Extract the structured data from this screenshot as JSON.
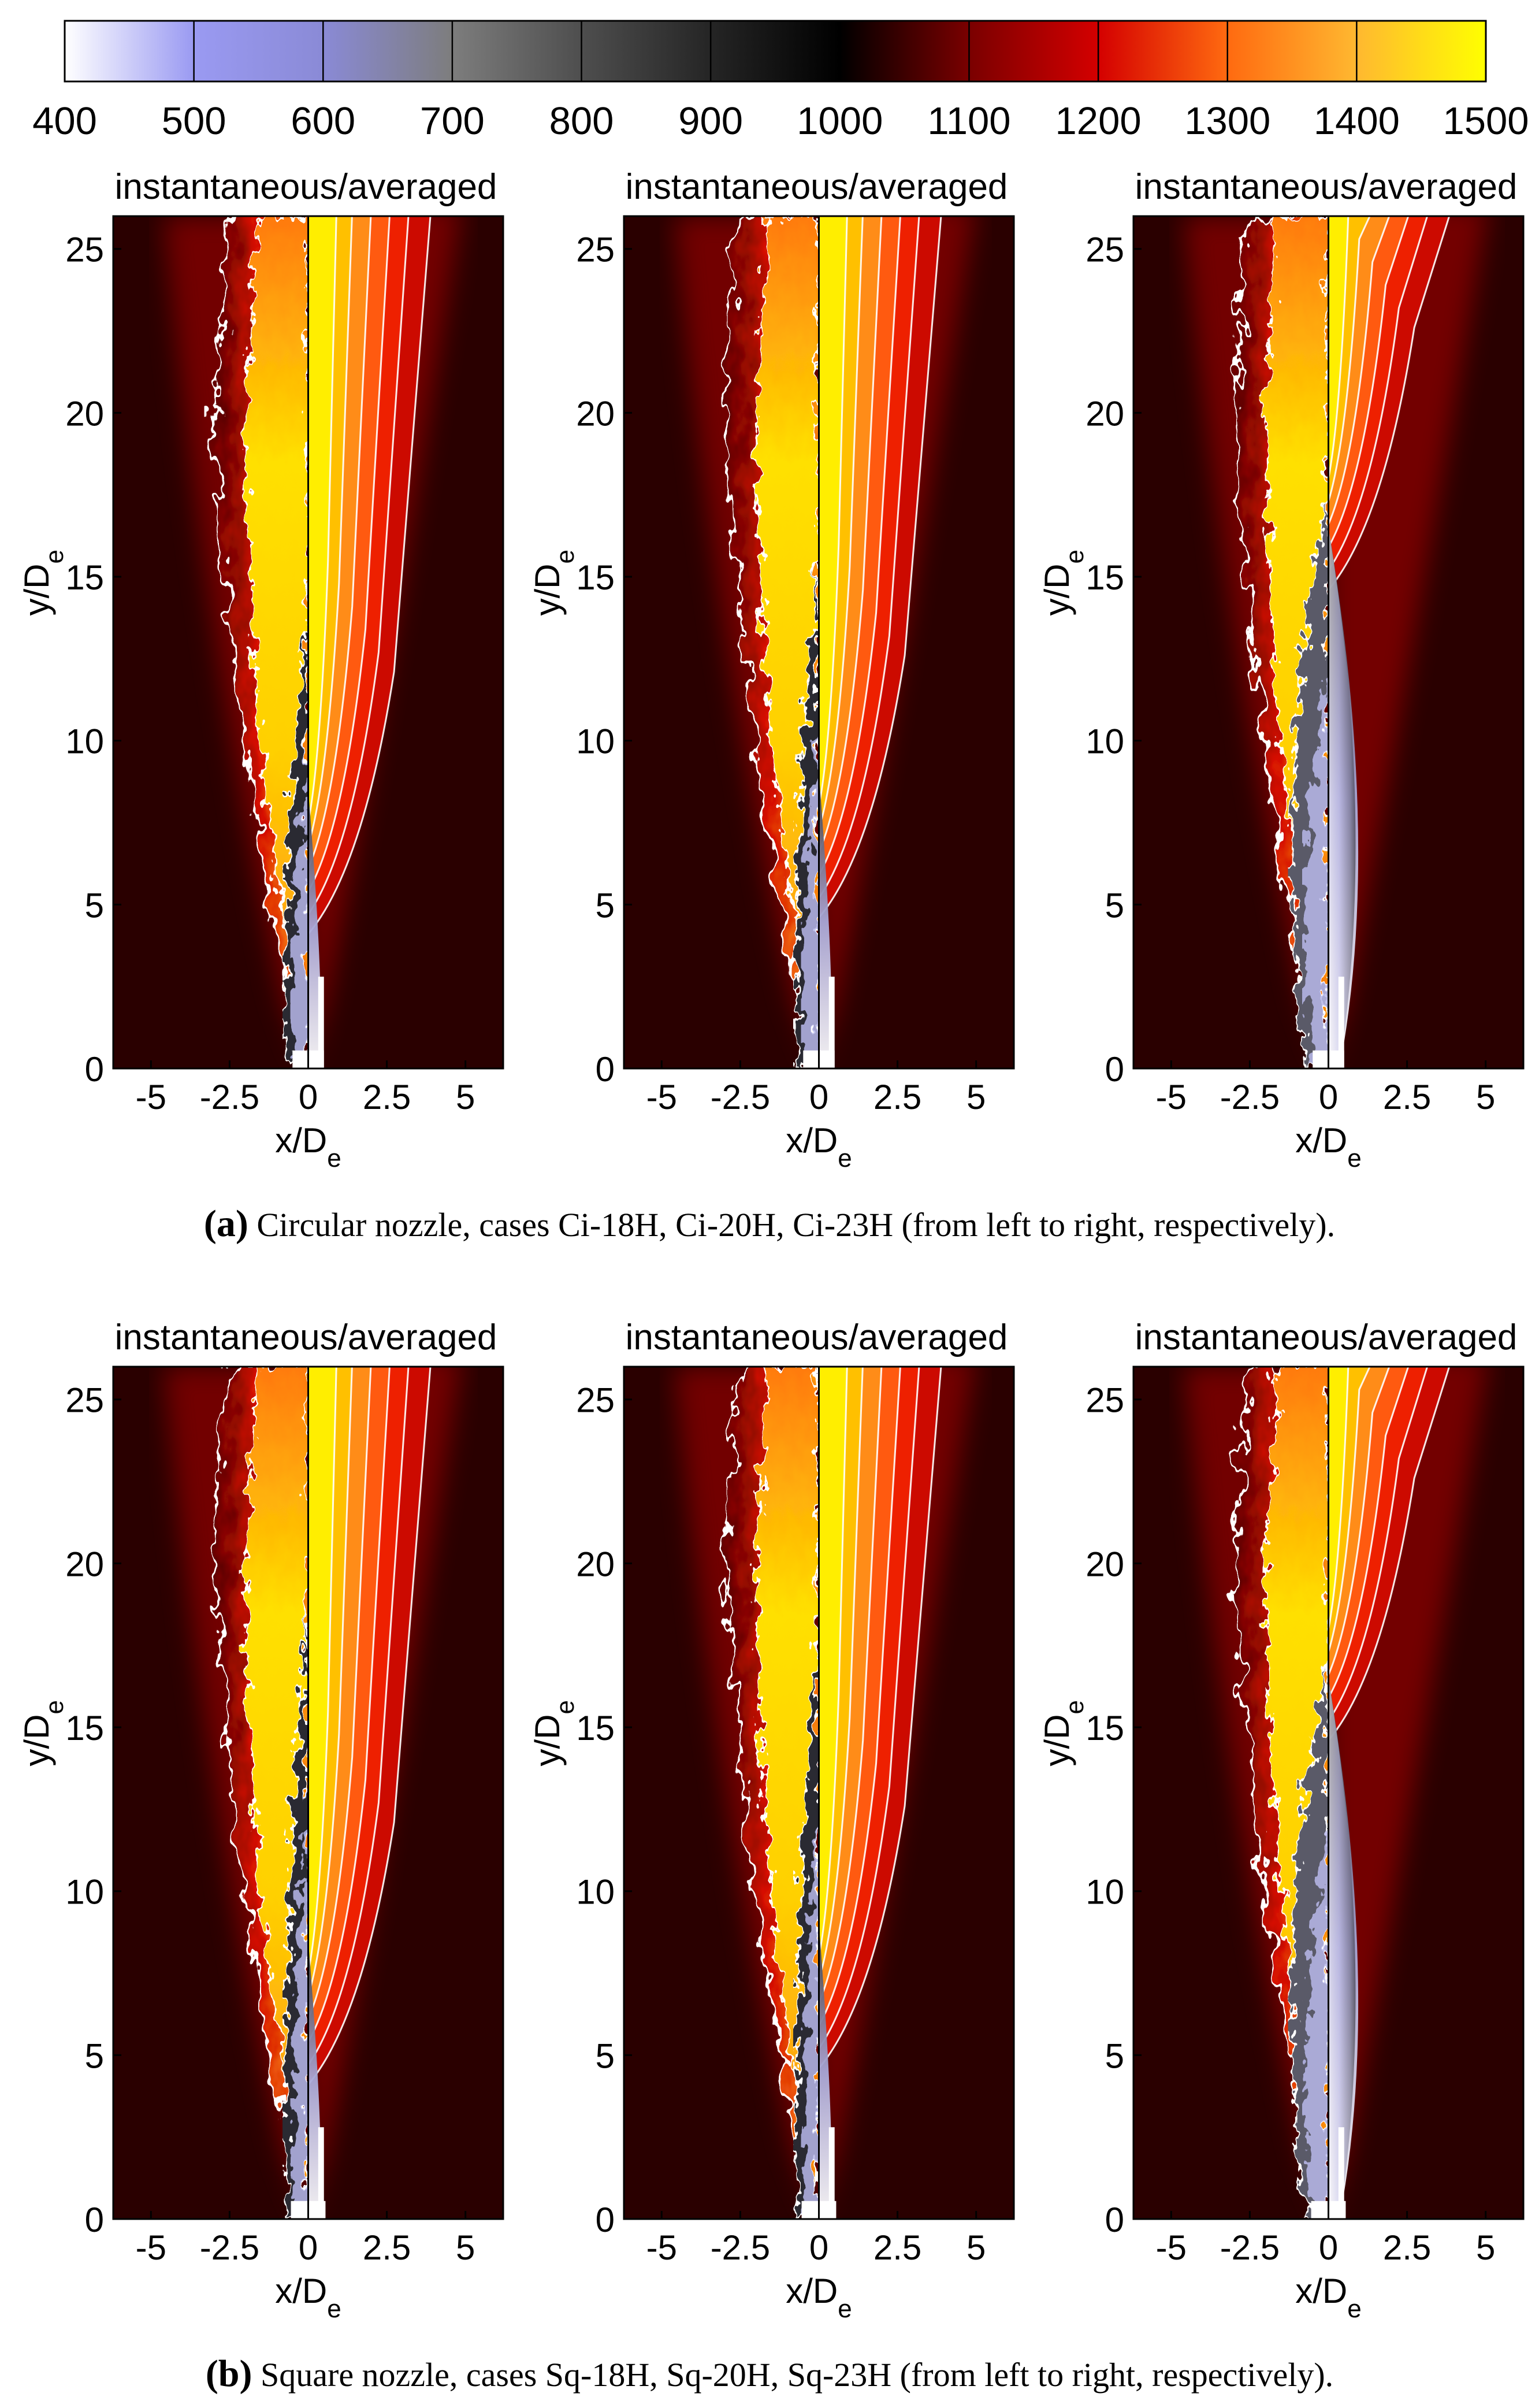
{
  "colorbar": {
    "ticks": [
      "400",
      "500",
      "600",
      "700",
      "800",
      "900",
      "1000",
      "1100",
      "1200",
      "1300",
      "1400",
      "1500"
    ],
    "colors": [
      "#ffffff",
      "#9a9af2",
      "#8a8ad6",
      "#7d7d7d",
      "#4e4e4e",
      "#252525",
      "#000000",
      "#7a0000",
      "#d40000",
      "#ff6a10",
      "#ffb830",
      "#ffff00"
    ]
  },
  "panels": [
    {
      "title": "instantaneous/averaged",
      "xlabel": "x/D",
      "xlabel_sub": "e",
      "ylabel": "y/D",
      "ylabel_sub": "e",
      "xticks": [
        "-5",
        "-2.5",
        "0",
        "2.5",
        "5"
      ],
      "yticks": [
        "0",
        "5",
        "10",
        "15",
        "20",
        "25"
      ]
    },
    {
      "title": "instantaneous/averaged",
      "xlabel": "x/D",
      "xlabel_sub": "e",
      "ylabel": "y/D",
      "ylabel_sub": "e",
      "xticks": [
        "-5",
        "-2.5",
        "0",
        "2.5",
        "5"
      ],
      "yticks": [
        "0",
        "5",
        "10",
        "15",
        "20",
        "25"
      ]
    },
    {
      "title": "instantaneous/averaged",
      "xlabel": "x/D",
      "xlabel_sub": "e",
      "ylabel": "y/D",
      "ylabel_sub": "e",
      "xticks": [
        "-5",
        "-2.5",
        "0",
        "2.5",
        "5"
      ],
      "yticks": [
        "0",
        "5",
        "10",
        "15",
        "20",
        "25"
      ]
    },
    {
      "title": "instantaneous/averaged",
      "xlabel": "x/D",
      "xlabel_sub": "e",
      "ylabel": "y/D",
      "ylabel_sub": "e",
      "xticks": [
        "-5",
        "-2.5",
        "0",
        "2.5",
        "5"
      ],
      "yticks": [
        "0",
        "5",
        "10",
        "15",
        "20",
        "25"
      ]
    },
    {
      "title": "instantaneous/averaged",
      "xlabel": "x/D",
      "xlabel_sub": "e",
      "ylabel": "y/D",
      "ylabel_sub": "e",
      "xticks": [
        "-5",
        "-2.5",
        "0",
        "2.5",
        "5"
      ],
      "yticks": [
        "0",
        "5",
        "10",
        "15",
        "20",
        "25"
      ]
    },
    {
      "title": "instantaneous/averaged",
      "xlabel": "x/D",
      "xlabel_sub": "e",
      "ylabel": "y/D",
      "ylabel_sub": "e",
      "xticks": [
        "-5",
        "-2.5",
        "0",
        "2.5",
        "5"
      ],
      "yticks": [
        "0",
        "5",
        "10",
        "15",
        "20",
        "25"
      ]
    }
  ],
  "captions": {
    "a_label": "(a)",
    "a_text": "Circular nozzle, cases Ci-18H, Ci-20H, Ci-23H (from left to right, respectively).",
    "b_label": "(b)",
    "b_text": "Square nozzle, cases Sq-18H, Sq-20H, Sq-23H (from left to right, respectively)."
  },
  "chart_data": [
    {
      "type": "heatmap",
      "case": "Ci-18H",
      "xlim": [
        -6.2,
        6.2
      ],
      "ylim": [
        0,
        26
      ],
      "colorbar_range": [
        400,
        1500
      ],
      "core_end": 14,
      "averaged_cool_end": 4.5
    },
    {
      "type": "heatmap",
      "case": "Ci-20H",
      "xlim": [
        -6.2,
        6.2
      ],
      "ylim": [
        0,
        26
      ],
      "colorbar_range": [
        400,
        1500
      ],
      "core_end": 15.5,
      "averaged_cool_end": 5
    },
    {
      "type": "heatmap",
      "case": "Ci-23H",
      "xlim": [
        -6.2,
        6.2
      ],
      "ylim": [
        0,
        26
      ],
      "colorbar_range": [
        400,
        1500
      ],
      "core_end": 17.5,
      "averaged_cool_end": 15
    },
    {
      "type": "heatmap",
      "case": "Sq-18H",
      "xlim": [
        -6.2,
        6.2
      ],
      "ylim": [
        0,
        26
      ],
      "colorbar_range": [
        400,
        1500
      ],
      "core_end": 19,
      "averaged_cool_end": 4.5
    },
    {
      "type": "heatmap",
      "case": "Sq-20H",
      "xlim": [
        -6.2,
        6.2
      ],
      "ylim": [
        0,
        26
      ],
      "colorbar_range": [
        400,
        1500
      ],
      "core_end": 18,
      "averaged_cool_end": 5
    },
    {
      "type": "heatmap",
      "case": "Sq-23H",
      "xlim": [
        -6.2,
        6.2
      ],
      "ylim": [
        0,
        26
      ],
      "colorbar_range": [
        400,
        1500
      ],
      "core_end": 17,
      "averaged_cool_end": 15
    }
  ]
}
